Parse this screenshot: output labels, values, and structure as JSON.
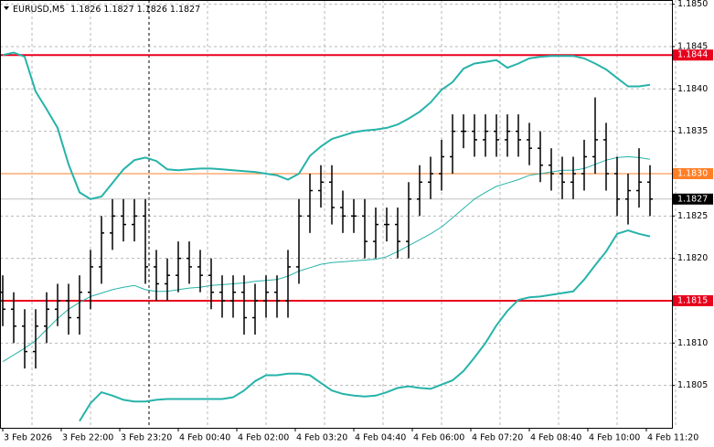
{
  "chart_data": {
    "type": "ohlc",
    "symbol": "EURUSD,M5",
    "header_values": [
      1.1826,
      1.1827,
      1.1826,
      1.1827
    ],
    "bar_color": "#000000",
    "x": [
      0,
      15,
      30,
      45,
      60,
      75,
      90,
      105,
      120,
      135,
      150,
      165,
      180,
      195,
      210,
      225,
      240,
      255,
      270,
      285,
      300,
      315,
      330,
      345,
      360,
      375,
      390,
      405,
      420,
      435,
      450,
      465,
      480,
      495,
      510,
      525,
      540,
      555,
      570,
      585,
      600,
      615,
      630,
      645,
      660,
      675,
      690,
      705,
      720,
      735,
      750,
      765,
      780,
      795,
      810,
      825,
      840,
      855,
      870,
      885
    ],
    "open": [
      1.1816,
      1.1814,
      1.1812,
      1.1809,
      1.1812,
      1.1814,
      1.1815,
      1.1813,
      1.1816,
      1.1819,
      1.1823,
      1.1825,
      1.1824,
      1.1825,
      1.1819,
      1.1817,
      1.1818,
      1.182,
      1.1819,
      1.1818,
      1.1816,
      1.1815,
      1.1816,
      1.1813,
      1.1815,
      1.1816,
      1.1815,
      1.1819,
      1.1825,
      1.1828,
      1.1829,
      1.1826,
      1.1825,
      1.1825,
      1.1822,
      1.1824,
      1.1824,
      1.1822,
      1.1827,
      1.1829,
      1.183,
      1.1832,
      1.1835,
      1.1835,
      1.1834,
      1.1835,
      1.1834,
      1.1835,
      1.1834,
      1.1833,
      1.1831,
      1.183,
      1.1829,
      1.183,
      1.1832,
      1.1834,
      1.183,
      1.1827,
      1.1828,
      1.1829
    ],
    "high": [
      1.1818,
      1.1816,
      1.1814,
      1.1814,
      1.1816,
      1.1817,
      1.1817,
      1.1818,
      1.1821,
      1.1825,
      1.1827,
      1.1827,
      1.1827,
      1.1827,
      1.1821,
      1.182,
      1.1822,
      1.1822,
      1.1821,
      1.182,
      1.1818,
      1.1818,
      1.1818,
      1.1817,
      1.1818,
      1.1818,
      1.1821,
      1.1827,
      1.183,
      1.1831,
      1.1831,
      1.1828,
      1.1827,
      1.1827,
      1.1826,
      1.1826,
      1.1826,
      1.1829,
      1.1831,
      1.1832,
      1.1834,
      1.1837,
      1.1837,
      1.1837,
      1.1837,
      1.1837,
      1.1837,
      1.1837,
      1.1836,
      1.1835,
      1.1833,
      1.1832,
      1.1832,
      1.1834,
      1.1839,
      1.1836,
      1.1832,
      1.183,
      1.1833,
      1.1831
    ],
    "low": [
      1.1812,
      1.181,
      1.1807,
      1.1807,
      1.181,
      1.1812,
      1.1811,
      1.1811,
      1.1814,
      1.1817,
      1.1821,
      1.1822,
      1.1822,
      1.1817,
      1.1815,
      1.1815,
      1.1816,
      1.1817,
      1.1816,
      1.1814,
      1.1813,
      1.1813,
      1.1811,
      1.1811,
      1.1813,
      1.1813,
      1.1813,
      1.1817,
      1.1823,
      1.1826,
      1.1824,
      1.1823,
      1.1823,
      1.182,
      1.182,
      1.1822,
      1.182,
      1.182,
      1.1825,
      1.1827,
      1.1828,
      1.183,
      1.1833,
      1.1832,
      1.1832,
      1.1832,
      1.1832,
      1.1832,
      1.1831,
      1.1829,
      1.1828,
      1.1827,
      1.1827,
      1.1828,
      1.183,
      1.1828,
      1.1825,
      1.1824,
      1.1826,
      1.1825
    ],
    "close": [
      1.1814,
      1.1812,
      1.1809,
      1.1812,
      1.1814,
      1.1815,
      1.1813,
      1.1816,
      1.1819,
      1.1823,
      1.1825,
      1.1824,
      1.1825,
      1.1819,
      1.1817,
      1.1818,
      1.182,
      1.1819,
      1.1818,
      1.1816,
      1.1815,
      1.1816,
      1.1813,
      1.1815,
      1.1816,
      1.1815,
      1.1819,
      1.1825,
      1.1828,
      1.1829,
      1.1826,
      1.1825,
      1.1825,
      1.1822,
      1.1824,
      1.1824,
      1.1822,
      1.1827,
      1.1829,
      1.183,
      1.1832,
      1.1835,
      1.1835,
      1.1834,
      1.1835,
      1.1834,
      1.1835,
      1.1834,
      1.1833,
      1.1831,
      1.183,
      1.1829,
      1.183,
      1.1832,
      1.1834,
      1.183,
      1.1827,
      1.1828,
      1.1829,
      1.1827
    ],
    "indicator_lines": [
      {
        "color": "#26b3a9",
        "width": 2,
        "values": [
          1.1844,
          1.18443,
          1.18438,
          1.18397,
          1.18376,
          1.18354,
          1.18311,
          1.18278,
          1.1827,
          1.18273,
          1.18289,
          1.18305,
          1.18316,
          1.18319,
          1.18315,
          1.18305,
          1.18304,
          1.18305,
          1.18306,
          1.18306,
          1.18305,
          1.18304,
          1.18303,
          1.18302,
          1.183,
          1.18298,
          1.18293,
          1.183,
          1.18321,
          1.18332,
          1.18341,
          1.18345,
          1.18349,
          1.18351,
          1.18352,
          1.18354,
          1.18358,
          1.18365,
          1.18373,
          1.18384,
          1.18399,
          1.18408,
          1.18424,
          1.1843,
          1.18432,
          1.18434,
          1.18425,
          1.1843,
          1.18436,
          1.18438,
          1.18439,
          1.18439,
          1.18439,
          1.18436,
          1.1843,
          1.18423,
          1.18413,
          1.18403,
          1.18403,
          1.18405
        ]
      },
      {
        "color": "#26b3a9",
        "width": 1,
        "values": [
          1.18078,
          1.18086,
          1.18094,
          1.18103,
          1.18116,
          1.18129,
          1.1814,
          1.18148,
          1.18155,
          1.18159,
          1.18163,
          1.18166,
          1.18168,
          1.18163,
          1.18161,
          1.18161,
          1.18163,
          1.18165,
          1.18166,
          1.18168,
          1.18169,
          1.1817,
          1.18171,
          1.18173,
          1.18174,
          1.18175,
          1.18179,
          1.18185,
          1.18189,
          1.18193,
          1.18195,
          1.18196,
          1.18197,
          1.18198,
          1.18199,
          1.18202,
          1.18208,
          1.18215,
          1.18222,
          1.18229,
          1.18237,
          1.18248,
          1.18259,
          1.1827,
          1.18278,
          1.18285,
          1.18289,
          1.18293,
          1.18298,
          1.183,
          1.18302,
          1.18304,
          1.18304,
          1.18306,
          1.18311,
          1.18316,
          1.18319,
          1.1832,
          1.18319,
          1.18317
        ]
      },
      {
        "color": "#26b3a9",
        "width": 2,
        "values": [
          null,
          null,
          null,
          null,
          null,
          null,
          null,
          1.18008,
          1.18029,
          1.18042,
          1.18038,
          1.18033,
          1.18031,
          1.18031,
          1.18033,
          1.18034,
          1.18034,
          1.18034,
          1.18034,
          1.18034,
          1.18034,
          1.18036,
          1.18044,
          1.18055,
          1.18062,
          1.18062,
          1.18064,
          1.18064,
          1.18062,
          1.18053,
          1.18044,
          1.1804,
          1.18038,
          1.18037,
          1.18038,
          1.18042,
          1.18047,
          1.18049,
          1.18047,
          1.18046,
          1.18051,
          1.18056,
          1.18067,
          1.18083,
          1.181,
          1.18121,
          1.18138,
          1.18151,
          1.18154,
          1.18155,
          1.18157,
          1.18159,
          1.18161,
          1.18175,
          1.18192,
          1.18208,
          1.18229,
          1.18233,
          1.18229,
          1.18226
        ]
      }
    ],
    "levels": [
      {
        "value": 1.1844,
        "label": "1.1844",
        "color": "#e8001c",
        "width": 2
      },
      {
        "value": 1.183,
        "label": "1.1830",
        "color": "#ff7f27",
        "width": 1
      },
      {
        "value": 1.1815,
        "label": "1.1815",
        "color": "#e8001c",
        "width": 2
      }
    ],
    "current_price": 1.1827,
    "vertical_line_x": 200,
    "xlim": [
      -3.75,
      915
    ],
    "ylim": [
      1.18,
      1.18505
    ],
    "xticks": [
      {
        "value": 0,
        "label": "3 Feb 2026"
      },
      {
        "value": 80,
        "label": "3 Feb 22:00"
      },
      {
        "value": 160,
        "label": "3 Feb 23:20"
      },
      {
        "value": 240,
        "label": "4 Feb 00:40"
      },
      {
        "value": 320,
        "label": "4 Feb 02:00"
      },
      {
        "value": 400,
        "label": "4 Feb 03:20"
      },
      {
        "value": 480,
        "label": "4 Feb 04:40"
      },
      {
        "value": 560,
        "label": "4 Feb 06:00"
      },
      {
        "value": 640,
        "label": "4 Feb 07:20"
      },
      {
        "value": 720,
        "label": "4 Feb 08:40"
      },
      {
        "value": 800,
        "label": "4 Feb 10:00"
      },
      {
        "value": 880,
        "label": "4 Feb 11:20"
      }
    ],
    "yticks": [
      {
        "value": 1.185,
        "label": "1.1850"
      },
      1.1845,
      {
        "value": 1.184,
        "label": "1.1840"
      },
      1.1835,
      {
        "value": 1.183,
        "label": "1.1830"
      },
      1.1825,
      {
        "value": 1.182,
        "label": "1.1820"
      },
      1.1815,
      {
        "value": 1.181,
        "label": "1.1810"
      },
      1.1805
    ],
    "grid": true
  }
}
